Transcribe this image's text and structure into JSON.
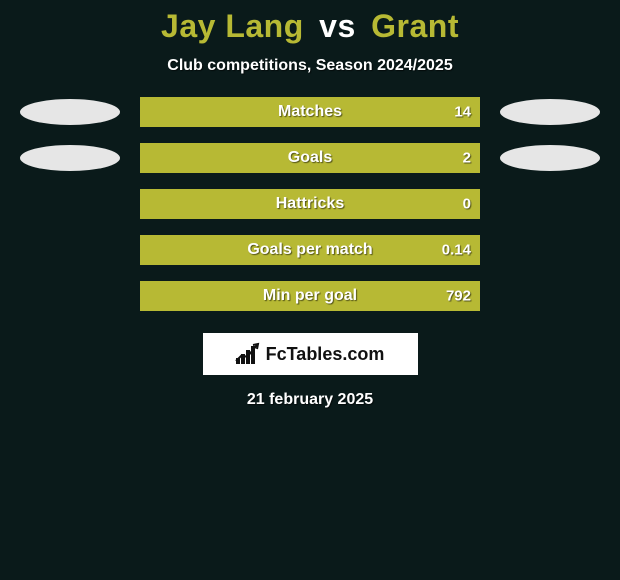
{
  "background_color": "#0a1a1a",
  "accent_color": "#b7b934",
  "text_color": "#ffffff",
  "title": {
    "player1": "Jay Lang",
    "vs": "vs",
    "player2": "Grant",
    "fontsize": 32
  },
  "subtitle": "Club competitions, Season 2024/2025",
  "rows": [
    {
      "label": "Matches",
      "left_oval": true,
      "right_oval": true,
      "left_oval_color": "#e6e6e6",
      "right_oval_color": "#e6e6e6",
      "left_value": "",
      "right_value": "14",
      "fill_pct": 100
    },
    {
      "label": "Goals",
      "left_oval": true,
      "right_oval": true,
      "left_oval_color": "#e6e6e6",
      "right_oval_color": "#e6e6e6",
      "left_value": "",
      "right_value": "2",
      "fill_pct": 100
    },
    {
      "label": "Hattricks",
      "left_oval": false,
      "right_oval": false,
      "left_value": "",
      "right_value": "0",
      "fill_pct": 100
    },
    {
      "label": "Goals per match",
      "left_oval": false,
      "right_oval": false,
      "left_value": "",
      "right_value": "0.14",
      "fill_pct": 100
    },
    {
      "label": "Min per goal",
      "left_oval": false,
      "right_oval": false,
      "left_value": "",
      "right_value": "792",
      "fill_pct": 100
    }
  ],
  "brand": "FcTables.com",
  "date": "21 february 2025"
}
